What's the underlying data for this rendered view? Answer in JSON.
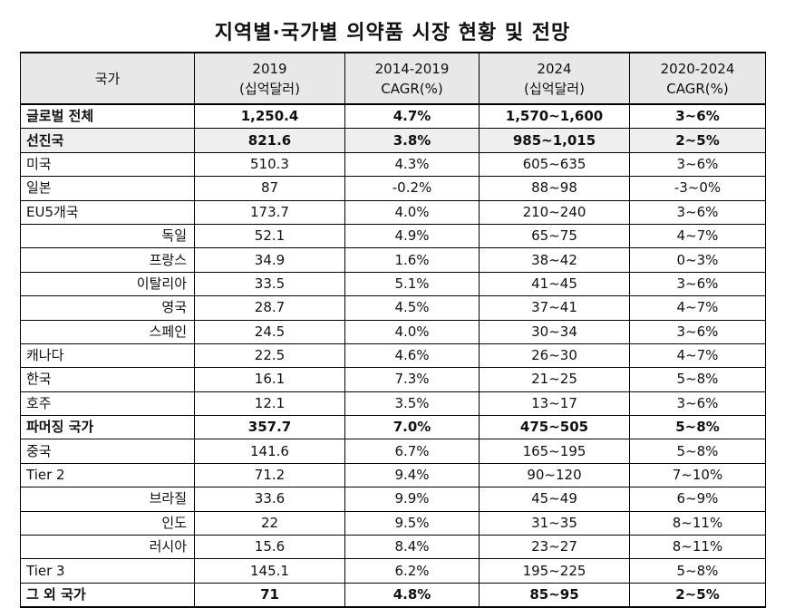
{
  "title": "지역별·국가별 의약품 시장 현황 및 전망",
  "header": {
    "country": "국가",
    "c1": [
      "2019",
      "(십억달러)"
    ],
    "c2": [
      "2014-2019",
      "CAGR(%)"
    ],
    "c3": [
      "2024",
      "(십억달러)"
    ],
    "c4": [
      "2020-2024",
      "CAGR(%)"
    ]
  },
  "rows": [
    {
      "name": "글로벌 전체",
      "v2019": "1,250.4",
      "cagr1419": "4.7%",
      "v2024": "1,570~1,600",
      "cagr2024": "3~6%",
      "style": "bold"
    },
    {
      "name": "선진국",
      "v2019": "821.6",
      "cagr1419": "3.8%",
      "v2024": "985~1,015",
      "cagr2024": "2~5%",
      "style": "bold shade"
    },
    {
      "name": "미국",
      "v2019": "510.3",
      "cagr1419": "4.3%",
      "v2024": "605~635",
      "cagr2024": "3~6%",
      "style": ""
    },
    {
      "name": "일본",
      "v2019": "87",
      "cagr1419": "-0.2%",
      "v2024": "88~98",
      "cagr2024": "-3~0%",
      "style": ""
    },
    {
      "name": "EU5개국",
      "v2019": "173.7",
      "cagr1419": "4.0%",
      "v2024": "210~240",
      "cagr2024": "3~6%",
      "style": ""
    },
    {
      "name": "독일",
      "v2019": "52.1",
      "cagr1419": "4.9%",
      "v2024": "65~75",
      "cagr2024": "4~7%",
      "style": "indent"
    },
    {
      "name": "프랑스",
      "v2019": "34.9",
      "cagr1419": "1.6%",
      "v2024": "38~42",
      "cagr2024": "0~3%",
      "style": "indent"
    },
    {
      "name": "이탈리아",
      "v2019": "33.5",
      "cagr1419": "5.1%",
      "v2024": "41~45",
      "cagr2024": "3~6%",
      "style": "indent"
    },
    {
      "name": "영국",
      "v2019": "28.7",
      "cagr1419": "4.5%",
      "v2024": "37~41",
      "cagr2024": "4~7%",
      "style": "indent"
    },
    {
      "name": "스페인",
      "v2019": "24.5",
      "cagr1419": "4.0%",
      "v2024": "30~34",
      "cagr2024": "3~6%",
      "style": "indent"
    },
    {
      "name": "캐나다",
      "v2019": "22.5",
      "cagr1419": "4.6%",
      "v2024": "26~30",
      "cagr2024": "4~7%",
      "style": ""
    },
    {
      "name": "한국",
      "v2019": "16.1",
      "cagr1419": "7.3%",
      "v2024": "21~25",
      "cagr2024": "5~8%",
      "style": ""
    },
    {
      "name": "호주",
      "v2019": "12.1",
      "cagr1419": "3.5%",
      "v2024": "13~17",
      "cagr2024": "3~6%",
      "style": ""
    },
    {
      "name": "파머징 국가",
      "v2019": "357.7",
      "cagr1419": "7.0%",
      "v2024": "475~505",
      "cagr2024": "5~8%",
      "style": "bold"
    },
    {
      "name": "중국",
      "v2019": "141.6",
      "cagr1419": "6.7%",
      "v2024": "165~195",
      "cagr2024": "5~8%",
      "style": ""
    },
    {
      "name": "Tier 2",
      "v2019": "71.2",
      "cagr1419": "9.4%",
      "v2024": "90~120",
      "cagr2024": "7~10%",
      "style": ""
    },
    {
      "name": "브라질",
      "v2019": "33.6",
      "cagr1419": "9.9%",
      "v2024": "45~49",
      "cagr2024": "6~9%",
      "style": "indent"
    },
    {
      "name": "인도",
      "v2019": "22",
      "cagr1419": "9.5%",
      "v2024": "31~35",
      "cagr2024": "8~11%",
      "style": "indent"
    },
    {
      "name": "러시아",
      "v2019": "15.6",
      "cagr1419": "8.4%",
      "v2024": "23~27",
      "cagr2024": "8~11%",
      "style": "indent"
    },
    {
      "name": "Tier 3",
      "v2019": "145.1",
      "cagr1419": "6.2%",
      "v2024": "195~225",
      "cagr2024": "5~8%",
      "style": ""
    },
    {
      "name": "그 외 국가",
      "v2019": "71",
      "cagr1419": "4.8%",
      "v2024": "85~95",
      "cagr2024": "2~5%",
      "style": "bold last"
    }
  ]
}
